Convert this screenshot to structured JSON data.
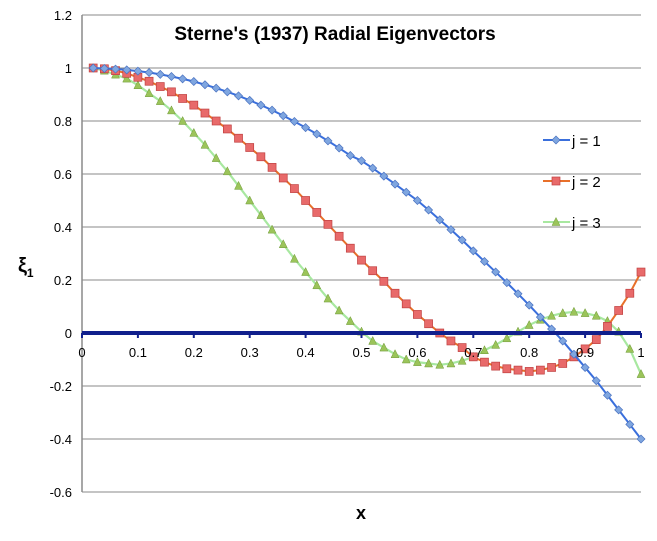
{
  "chart_data": {
    "type": "line",
    "title": "Sterne's (1937) Radial Eigenvectors",
    "xlabel": "x",
    "ylabel": "ξ",
    "ylabel_sub": "1",
    "xlim": [
      0,
      1
    ],
    "ylim": [
      -0.6,
      1.2
    ],
    "x_ticks": [
      "0",
      "0.1",
      "0.2",
      "0.3",
      "0.4",
      "0.5",
      "0.6",
      "0.7",
      "0.8",
      "0.9",
      "1"
    ],
    "y_ticks": [
      "-0.6",
      "-0.4",
      "-0.2",
      "0",
      "0.2",
      "0.4",
      "0.6",
      "0.8",
      "1",
      "1.2"
    ],
    "grid": "horizontal",
    "legend_position": "right",
    "x": [
      0.02,
      0.04,
      0.06,
      0.08,
      0.1,
      0.12,
      0.14,
      0.16,
      0.18,
      0.2,
      0.22,
      0.24,
      0.26,
      0.28,
      0.3,
      0.32,
      0.34,
      0.36,
      0.38,
      0.4,
      0.42,
      0.44,
      0.46,
      0.48,
      0.5,
      0.52,
      0.54,
      0.56,
      0.58,
      0.6,
      0.62,
      0.64,
      0.66,
      0.68,
      0.7,
      0.72,
      0.74,
      0.76,
      0.78,
      0.8,
      0.82,
      0.84,
      0.86,
      0.88,
      0.9,
      0.92,
      0.94,
      0.96,
      0.98,
      1.0
    ],
    "series": [
      {
        "name": "j = 1",
        "color": "#3a6fdc",
        "marker": "diamond",
        "values": [
          1.0,
          0.998,
          0.996,
          0.993,
          0.988,
          0.983,
          0.976,
          0.968,
          0.959,
          0.949,
          0.937,
          0.924,
          0.91,
          0.895,
          0.878,
          0.86,
          0.841,
          0.82,
          0.798,
          0.775,
          0.751,
          0.725,
          0.698,
          0.67,
          0.65,
          0.622,
          0.592,
          0.562,
          0.531,
          0.5,
          0.464,
          0.427,
          0.39,
          0.351,
          0.31,
          0.27,
          0.23,
          0.19,
          0.148,
          0.105,
          0.06,
          0.015,
          -0.03,
          -0.08,
          -0.13,
          -0.18,
          -0.235,
          -0.29,
          -0.345,
          -0.4
        ]
      },
      {
        "name": "j = 2",
        "color": "#e8702a",
        "marker": "square",
        "values": [
          1.0,
          0.997,
          0.99,
          0.98,
          0.965,
          0.95,
          0.93,
          0.91,
          0.885,
          0.86,
          0.83,
          0.8,
          0.77,
          0.735,
          0.7,
          0.665,
          0.625,
          0.585,
          0.545,
          0.5,
          0.455,
          0.41,
          0.365,
          0.32,
          0.275,
          0.235,
          0.195,
          0.15,
          0.11,
          0.07,
          0.035,
          0.0,
          -0.03,
          -0.055,
          -0.09,
          -0.11,
          -0.125,
          -0.135,
          -0.14,
          -0.145,
          -0.14,
          -0.13,
          -0.115,
          -0.09,
          -0.06,
          -0.025,
          0.025,
          0.085,
          0.15,
          0.23
        ]
      },
      {
        "name": "j = 3",
        "color": "#a8e8a0",
        "marker": "triangle",
        "values": [
          1.0,
          0.99,
          0.975,
          0.96,
          0.935,
          0.905,
          0.875,
          0.84,
          0.8,
          0.755,
          0.71,
          0.66,
          0.61,
          0.555,
          0.5,
          0.445,
          0.39,
          0.335,
          0.28,
          0.23,
          0.18,
          0.13,
          0.085,
          0.045,
          0.005,
          -0.03,
          -0.055,
          -0.08,
          -0.1,
          -0.11,
          -0.115,
          -0.12,
          -0.115,
          -0.105,
          -0.09,
          -0.065,
          -0.045,
          -0.02,
          0.005,
          0.03,
          0.05,
          0.065,
          0.075,
          0.08,
          0.075,
          0.065,
          0.045,
          0.005,
          -0.06,
          -0.155
        ]
      }
    ]
  }
}
